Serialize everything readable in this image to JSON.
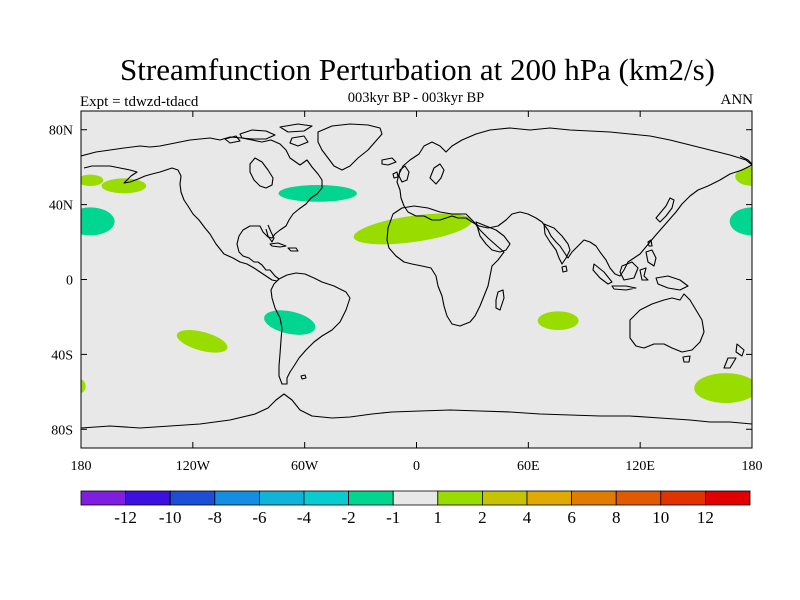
{
  "map": {
    "title": "Streamfunction Perturbation at 200 hPa (km2/s)",
    "subtitle": "003kyr BP - 003kyr BP",
    "left_label": "Expt = tdwzd-tdacd",
    "right_label": "ANN",
    "ocean_color": "#e8e8e8",
    "coastline_color": "#000000",
    "lat_ticks": [
      {
        "value": 80,
        "label": "80N"
      },
      {
        "value": 40,
        "label": "40N"
      },
      {
        "value": 0,
        "label": "0"
      },
      {
        "value": -40,
        "label": "40S"
      },
      {
        "value": -80,
        "label": "80S"
      }
    ],
    "lon_ticks": [
      {
        "value": -180,
        "label": "180"
      },
      {
        "value": -120,
        "label": "120W"
      },
      {
        "value": -60,
        "label": "60W"
      },
      {
        "value": 0,
        "label": "0"
      },
      {
        "value": 60,
        "label": "60E"
      },
      {
        "value": 120,
        "label": "120E"
      },
      {
        "value": 180,
        "label": "180"
      }
    ],
    "anomalies": [
      {
        "name": "north-pacific-west-lobe",
        "lon": -175,
        "lat": 53,
        "rlon": 7,
        "rlat": 3,
        "color": "#99dd00",
        "rot": 0
      },
      {
        "name": "north-pacific-lobe",
        "lon": -157,
        "lat": 50,
        "rlon": 12,
        "rlat": 4,
        "color": "#99dd00",
        "rot": 0
      },
      {
        "name": "east-pacific-cell",
        "lon": -175,
        "lat": 31,
        "rlon": 13,
        "rlat": 7.5,
        "color": "#00d68f",
        "rot": 0
      },
      {
        "name": "north-atlantic-cell",
        "lon": -53,
        "lat": 46,
        "rlon": 21,
        "rlat": 4.5,
        "color": "#00d68f",
        "rot": 0
      },
      {
        "name": "subtropical-atlantic-cell",
        "lon": -2,
        "lat": 27,
        "rlon": 32,
        "rlat": 7,
        "color": "#99dd00",
        "rot": -8
      },
      {
        "name": "south-pacific-cell",
        "lon": -115,
        "lat": -33,
        "rlon": 14,
        "rlat": 5,
        "color": "#99dd00",
        "rot": 15
      },
      {
        "name": "south-america-cell",
        "lon": -68,
        "lat": -23,
        "rlon": 14,
        "rlat": 6,
        "color": "#00d68f",
        "rot": 12
      },
      {
        "name": "indian-ocean-cell",
        "lon": 76,
        "lat": -22,
        "rlon": 11,
        "rlat": 5,
        "color": "#99dd00",
        "rot": 0
      },
      {
        "name": "south-pacific-edge",
        "lon": -180,
        "lat": -57,
        "rlon": 2.5,
        "rlat": 3.5,
        "color": "#99dd00",
        "rot": 0
      },
      {
        "name": "southwest-pacific-cell",
        "lon": 166,
        "lat": -58,
        "rlon": 17,
        "rlat": 8,
        "color": "#99dd00",
        "rot": 0
      },
      {
        "name": "west-pacific-cell",
        "lon": 180,
        "lat": 31,
        "rlon": 12,
        "rlat": 7.5,
        "color": "#00d68f",
        "rot": 0
      },
      {
        "name": "kamchatka-cell",
        "lon": 180,
        "lat": 55,
        "rlon": 9,
        "rlat": 5,
        "color": "#99dd00",
        "rot": 0
      }
    ]
  },
  "colorbar": {
    "colors": [
      "#7e1fe0",
      "#3b10e0",
      "#1c4fd6",
      "#138ee0",
      "#0fb4d8",
      "#08cdd0",
      "#00d68f",
      "#e8e8e8",
      "#99dd00",
      "#c6c400",
      "#e0aa00",
      "#e07d00",
      "#e05a00",
      "#e03400",
      "#e00000"
    ],
    "labels": [
      "-12",
      "-10",
      "-8",
      "-6",
      "-4",
      "-2",
      "-1",
      "1",
      "2",
      "4",
      "6",
      "8",
      "10",
      "12"
    ]
  }
}
